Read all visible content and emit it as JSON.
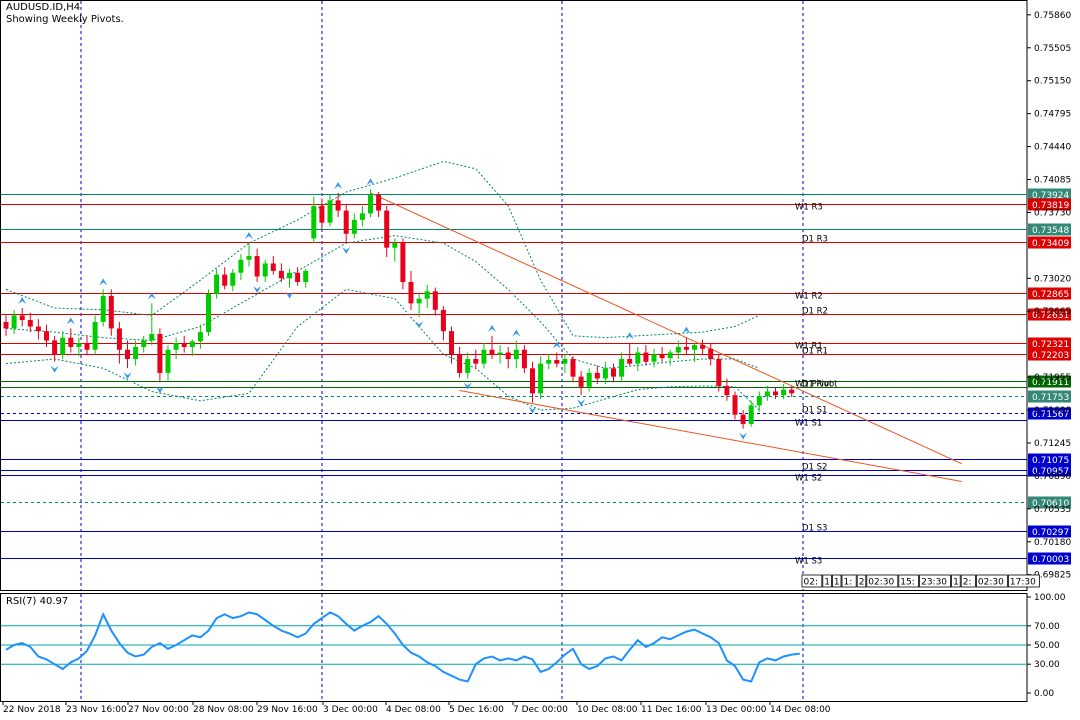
{
  "header": {
    "symbol": "AUDUSD.ID,H4",
    "subtitle": "Showing Weekly Pivots."
  },
  "rsi": {
    "label": "RSI(7) 40.97",
    "levels": [
      "100.00",
      "70.00",
      "50.00",
      "30.00",
      "0.00"
    ]
  },
  "colors": {
    "bull": "#00cc00",
    "bear": "#e8001c",
    "resistance": "#dd0000",
    "support": "#0000cc",
    "weekly_pivot": "#006600",
    "bollinger": "#008866",
    "trendline": "#ee5522",
    "rsi_line": "#1e90ff",
    "arrow": "#3399ee"
  },
  "time_tabs": [
    "02:",
    "1",
    "1",
    "1:",
    "2",
    "02:30",
    "15:",
    "23:30",
    "1",
    "2:",
    "02:30",
    "17:30"
  ],
  "chart_data": [
    {
      "type": "candlestick",
      "title": "AUDUSD.ID,H4",
      "subtitle": "Showing Weekly Pivots.",
      "x_labels": [
        "22 Nov 2018",
        "23 Nov 16:00",
        "27 Nov 00:00",
        "28 Nov 08:00",
        "29 Nov 16:00",
        "3 Dec 00:00",
        "4 Dec 08:00",
        "5 Dec 16:00",
        "7 Dec 00:00",
        "10 Dec 08:00",
        "11 Dec 16:00",
        "13 Dec 00:00",
        "14 Dec 08:00"
      ],
      "y_ticks": [
        "0.75860",
        "0.75505",
        "0.75150",
        "0.74795",
        "0.74440",
        "0.74085",
        "0.73730",
        "0.73020",
        "0.72665",
        "0.71955",
        "0.71600",
        "0.71245",
        "0.70890",
        "0.70535",
        "0.70180",
        "0.69825"
      ],
      "ylim": [
        0.6966,
        0.7602
      ],
      "levels": [
        {
          "price": 0.73924,
          "label": "",
          "box": "0.73924",
          "kind": "weekly"
        },
        {
          "price": 0.73819,
          "label": "W1 R3",
          "box": "0.73819",
          "kind": "resistance"
        },
        {
          "price": 0.73548,
          "label": "",
          "box": "0.73548",
          "kind": "weekly"
        },
        {
          "price": 0.73409,
          "label": "D1 R3",
          "box": "0.73409",
          "kind": "resistance"
        },
        {
          "price": 0.72865,
          "label": "W1 R2",
          "box": "0.72865",
          "kind": "resistance"
        },
        {
          "price": 0.72631,
          "label": "D1 R2",
          "box": "0.72631",
          "kind": "resistance"
        },
        {
          "price": 0.72321,
          "label": "W1 R1",
          "box": "0.72321",
          "kind": "resistance"
        },
        {
          "price": 0.72203,
          "label": "D1 R1",
          "box": "0.72203",
          "kind": "resistance"
        },
        {
          "price": 0.71911,
          "label": "W1 Pivot",
          "box": "0.71911",
          "kind": "pivot"
        },
        {
          "price": 0.7185,
          "label": "D1 Pivot",
          "box": "",
          "kind": "pivot"
        },
        {
          "price": 0.71753,
          "label": "",
          "box": "0.71753",
          "kind": "weekly"
        },
        {
          "price": 0.71567,
          "label": "D1 S1",
          "box": "0.71567",
          "kind": "support"
        },
        {
          "price": 0.7149,
          "label": "W1 S1",
          "box": "",
          "kind": "support"
        },
        {
          "price": 0.71075,
          "label": "",
          "box": "0.71075",
          "kind": "support"
        },
        {
          "price": 0.70957,
          "label": "D1 S2",
          "box": "0.70957",
          "kind": "support"
        },
        {
          "price": 0.709,
          "label": "W1 S2",
          "box": "",
          "kind": "support"
        },
        {
          "price": 0.7061,
          "label": "",
          "box": "0.70610",
          "kind": "weekly"
        },
        {
          "price": 0.70297,
          "label": "D1 S3",
          "box": "0.70297",
          "kind": "support"
        },
        {
          "price": 0.70003,
          "label": "W1 S3",
          "box": "0.70003",
          "kind": "support"
        }
      ],
      "candles": [
        [
          0.7255,
          0.7262,
          0.724,
          0.7248
        ],
        [
          0.7248,
          0.7268,
          0.7242,
          0.7262
        ],
        [
          0.7262,
          0.727,
          0.725,
          0.7257
        ],
        [
          0.7257,
          0.7265,
          0.7244,
          0.725
        ],
        [
          0.725,
          0.7258,
          0.7236,
          0.7245
        ],
        [
          0.7245,
          0.7252,
          0.7228,
          0.7235
        ],
        [
          0.7235,
          0.724,
          0.7212,
          0.722
        ],
        [
          0.722,
          0.7245,
          0.7215,
          0.7238
        ],
        [
          0.7238,
          0.7248,
          0.7222,
          0.7228
        ],
        [
          0.7228,
          0.7238,
          0.7218,
          0.7232
        ],
        [
          0.7232,
          0.724,
          0.722,
          0.7225
        ],
        [
          0.7225,
          0.7262,
          0.722,
          0.7255
        ],
        [
          0.7255,
          0.729,
          0.725,
          0.7283
        ],
        [
          0.7283,
          0.729,
          0.724,
          0.7248
        ],
        [
          0.7248,
          0.7255,
          0.721,
          0.7225
        ],
        [
          0.7225,
          0.7235,
          0.7205,
          0.7215
        ],
        [
          0.7215,
          0.7235,
          0.7208,
          0.7228
        ],
        [
          0.7228,
          0.724,
          0.7222,
          0.7235
        ],
        [
          0.7235,
          0.7275,
          0.723,
          0.7242
        ],
        [
          0.7242,
          0.7248,
          0.719,
          0.72
        ],
        [
          0.72,
          0.723,
          0.7192,
          0.7225
        ],
        [
          0.7225,
          0.7238,
          0.7215,
          0.7232
        ],
        [
          0.7232,
          0.724,
          0.7222,
          0.7228
        ],
        [
          0.7228,
          0.7236,
          0.7218,
          0.7234
        ],
        [
          0.7234,
          0.7252,
          0.7226,
          0.7244
        ],
        [
          0.7244,
          0.729,
          0.724,
          0.7285
        ],
        [
          0.7285,
          0.7312,
          0.728,
          0.7306
        ],
        [
          0.7306,
          0.7314,
          0.729,
          0.7294
        ],
        [
          0.7294,
          0.7312,
          0.7288,
          0.7308
        ],
        [
          0.7308,
          0.7328,
          0.73,
          0.7322
        ],
        [
          0.7322,
          0.734,
          0.7315,
          0.7326
        ],
        [
          0.7326,
          0.7334,
          0.7298,
          0.7304
        ],
        [
          0.7304,
          0.7322,
          0.7298,
          0.7318
        ],
        [
          0.7318,
          0.7326,
          0.7306,
          0.731
        ],
        [
          0.731,
          0.7318,
          0.7298,
          0.7302
        ],
        [
          0.7302,
          0.7312,
          0.7292,
          0.7308
        ],
        [
          0.7308,
          0.7314,
          0.7294,
          0.7298
        ],
        [
          0.7298,
          0.7312,
          0.7292,
          0.731
        ],
        [
          0.7345,
          0.739,
          0.734,
          0.738
        ],
        [
          0.738,
          0.7388,
          0.7355,
          0.7362
        ],
        [
          0.7362,
          0.7392,
          0.7358,
          0.7386
        ],
        [
          0.7386,
          0.7394,
          0.7368,
          0.7375
        ],
        [
          0.7375,
          0.7382,
          0.734,
          0.735
        ],
        [
          0.735,
          0.7372,
          0.7345,
          0.7365
        ],
        [
          0.7365,
          0.738,
          0.7358,
          0.7372
        ],
        [
          0.7372,
          0.7398,
          0.7368,
          0.7392
        ],
        [
          0.7392,
          0.7395,
          0.7368,
          0.7375
        ],
        [
          0.7375,
          0.738,
          0.7325,
          0.7335
        ],
        [
          0.7335,
          0.7345,
          0.732,
          0.734
        ],
        [
          0.734,
          0.7345,
          0.729,
          0.7298
        ],
        [
          0.7298,
          0.731,
          0.7268,
          0.7275
        ],
        [
          0.7275,
          0.7285,
          0.726,
          0.728
        ],
        [
          0.728,
          0.7295,
          0.727,
          0.7288
        ],
        [
          0.7288,
          0.7292,
          0.7262,
          0.7268
        ],
        [
          0.7268,
          0.7272,
          0.7235,
          0.7245
        ],
        [
          0.7245,
          0.725,
          0.721,
          0.722
        ],
        [
          0.722,
          0.7228,
          0.7195,
          0.72
        ],
        [
          0.72,
          0.7222,
          0.7194,
          0.7215
        ],
        [
          0.7215,
          0.7225,
          0.7204,
          0.721
        ],
        [
          0.721,
          0.7232,
          0.7205,
          0.7225
        ],
        [
          0.7225,
          0.724,
          0.7215,
          0.722
        ],
        [
          0.722,
          0.723,
          0.721,
          0.7222
        ],
        [
          0.7222,
          0.7228,
          0.7205,
          0.7215
        ],
        [
          0.7215,
          0.7235,
          0.7205,
          0.7225
        ],
        [
          0.7225,
          0.723,
          0.72,
          0.7205
        ],
        [
          0.7205,
          0.7212,
          0.7168,
          0.7178
        ],
        [
          0.7178,
          0.7218,
          0.7172,
          0.721
        ],
        [
          0.721,
          0.722,
          0.7204,
          0.7214
        ],
        [
          0.7214,
          0.7222,
          0.7206,
          0.721
        ],
        [
          0.721,
          0.722,
          0.72,
          0.7215
        ],
        [
          0.7215,
          0.7218,
          0.719,
          0.7196
        ],
        [
          0.7196,
          0.7202,
          0.7176,
          0.7185
        ],
        [
          0.7185,
          0.7205,
          0.718,
          0.72
        ],
        [
          0.72,
          0.7208,
          0.7188,
          0.7194
        ],
        [
          0.7194,
          0.7212,
          0.7188,
          0.7205
        ],
        [
          0.7205,
          0.721,
          0.719,
          0.7196
        ],
        [
          0.7196,
          0.7222,
          0.719,
          0.7215
        ],
        [
          0.7215,
          0.7232,
          0.7208,
          0.721
        ],
        [
          0.721,
          0.7228,
          0.7202,
          0.7222
        ],
        [
          0.7222,
          0.723,
          0.7208,
          0.7212
        ],
        [
          0.7212,
          0.7226,
          0.7206,
          0.722
        ],
        [
          0.722,
          0.7228,
          0.7212,
          0.7216
        ],
        [
          0.7216,
          0.7225,
          0.7208,
          0.7222
        ],
        [
          0.7222,
          0.7235,
          0.7215,
          0.7228
        ],
        [
          0.7228,
          0.7238,
          0.722,
          0.7225
        ],
        [
          0.7225,
          0.7232,
          0.7212,
          0.723
        ],
        [
          0.723,
          0.7236,
          0.722,
          0.7226
        ],
        [
          0.7226,
          0.7232,
          0.7208,
          0.7215
        ],
        [
          0.7215,
          0.722,
          0.718,
          0.7186
        ],
        [
          0.7186,
          0.7194,
          0.717,
          0.7176
        ],
        [
          0.7176,
          0.718,
          0.715,
          0.7155
        ],
        [
          0.7155,
          0.716,
          0.714,
          0.7145
        ],
        [
          0.7145,
          0.717,
          0.7142,
          0.7165
        ],
        [
          0.7165,
          0.718,
          0.7158,
          0.7175
        ],
        [
          0.7175,
          0.7186,
          0.717,
          0.718
        ],
        [
          0.718,
          0.7184,
          0.7172,
          0.7176
        ],
        [
          0.7176,
          0.7188,
          0.7172,
          0.7182
        ],
        [
          0.7182,
          0.7186,
          0.7174,
          0.7178
        ]
      ],
      "bollinger": {
        "upper": [
          [
            0,
            0.729
          ],
          [
            6,
            0.727
          ],
          [
            12,
            0.7268
          ],
          [
            18,
            0.7262
          ],
          [
            24,
            0.73
          ],
          [
            30,
            0.734
          ],
          [
            36,
            0.7365
          ],
          [
            42,
            0.7395
          ],
          [
            48,
            0.741
          ],
          [
            54,
            0.7428
          ],
          [
            58,
            0.742
          ],
          [
            62,
            0.738
          ],
          [
            66,
            0.73
          ],
          [
            70,
            0.724
          ],
          [
            74,
            0.7238
          ],
          [
            78,
            0.724
          ],
          [
            82,
            0.7242
          ],
          [
            86,
            0.7244
          ],
          [
            90,
            0.725
          ],
          [
            93,
            0.7262
          ]
        ],
        "middle": [
          [
            0,
            0.7248
          ],
          [
            6,
            0.7244
          ],
          [
            12,
            0.7238
          ],
          [
            18,
            0.7235
          ],
          [
            24,
            0.725
          ],
          [
            30,
            0.728
          ],
          [
            36,
            0.731
          ],
          [
            42,
            0.734
          ],
          [
            48,
            0.7348
          ],
          [
            54,
            0.734
          ],
          [
            58,
            0.732
          ],
          [
            62,
            0.729
          ],
          [
            66,
            0.7255
          ],
          [
            70,
            0.7215
          ],
          [
            74,
            0.7205
          ],
          [
            78,
            0.7208
          ],
          [
            82,
            0.7212
          ],
          [
            86,
            0.7215
          ],
          [
            90,
            0.7215
          ],
          [
            93,
            0.7205
          ]
        ],
        "lower": [
          [
            0,
            0.721
          ],
          [
            6,
            0.7215
          ],
          [
            12,
            0.7205
          ],
          [
            18,
            0.718
          ],
          [
            24,
            0.717
          ],
          [
            30,
            0.7178
          ],
          [
            36,
            0.725
          ],
          [
            42,
            0.729
          ],
          [
            48,
            0.728
          ],
          [
            54,
            0.722
          ],
          [
            58,
            0.7205
          ],
          [
            62,
            0.7175
          ],
          [
            66,
            0.716
          ],
          [
            70,
            0.7162
          ],
          [
            74,
            0.7172
          ],
          [
            78,
            0.7182
          ],
          [
            82,
            0.7185
          ],
          [
            86,
            0.7186
          ],
          [
            90,
            0.7185
          ],
          [
            93,
            0.716
          ]
        ]
      },
      "trendlines": [
        {
          "from": [
            45,
            0.7394
          ],
          "to": [
            118,
            0.7102
          ]
        },
        {
          "from": [
            56,
            0.7181
          ],
          "to": [
            118,
            0.7083
          ]
        }
      ]
    },
    {
      "type": "line",
      "title": "RSI(7) 40.97",
      "ylim": [
        0,
        100
      ],
      "values": [
        45,
        50,
        52,
        48,
        38,
        35,
        30,
        25,
        32,
        36,
        44,
        60,
        82,
        65,
        52,
        42,
        38,
        40,
        48,
        52,
        46,
        50,
        55,
        60,
        58,
        65,
        78,
        82,
        78,
        80,
        84,
        82,
        76,
        70,
        65,
        62,
        58,
        62,
        72,
        78,
        84,
        80,
        72,
        65,
        70,
        74,
        80,
        72,
        62,
        50,
        42,
        38,
        32,
        28,
        22,
        18,
        14,
        12,
        30,
        36,
        38,
        34,
        36,
        34,
        38,
        35,
        22,
        25,
        32,
        40,
        46,
        30,
        25,
        28,
        36,
        38,
        34,
        45,
        55,
        48,
        52,
        58,
        56,
        60,
        64,
        66,
        62,
        58,
        52,
        34,
        28,
        14,
        12,
        32,
        36,
        34,
        38,
        40,
        41
      ]
    }
  ]
}
